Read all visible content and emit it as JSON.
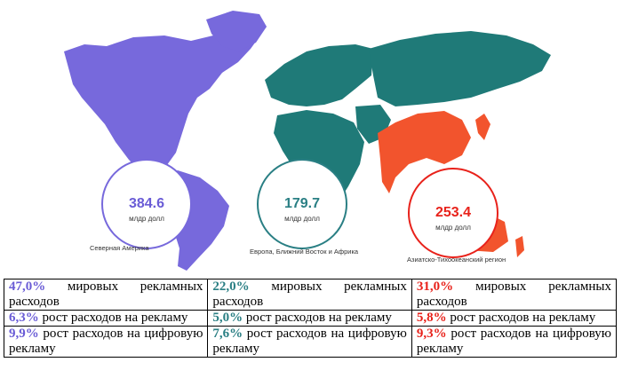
{
  "regions": [
    {
      "value": "384.6",
      "unit": "млдр долл",
      "name": "Северная Америка",
      "color": "#6a5cd6"
    },
    {
      "value": "179.7",
      "unit": "млдр долл",
      "name": "Европа, Ближний Восток и Африка",
      "color": "#2a7f84"
    },
    {
      "value": "253.4",
      "unit": "млдр долл",
      "name": "Азиатско-Тихоокеанский регион",
      "color": "#e8221b"
    }
  ],
  "land_colors": {
    "americas": "#7769dc",
    "emea": "#1f7a78",
    "apac": "#f2542d"
  },
  "table": {
    "row1": [
      {
        "pct": "47,0%",
        "text": " мировых рекламных расходов"
      },
      {
        "pct": "22,0%",
        "text": " мировых рекламных расходов"
      },
      {
        "pct": "31,0%",
        "text": " мировых рекламных расходов"
      }
    ],
    "row2": [
      {
        "pct": "6,3%",
        "text": " рост расходов на рекламу"
      },
      {
        "pct": "5,0%",
        "text": " рост расходов на рекламу"
      },
      {
        "pct": "5,8%",
        "text": " рост расходов на рекламу"
      }
    ],
    "row3": [
      {
        "pct": "9,9%",
        "text": " рост расходов на цифровую рекламу"
      },
      {
        "pct": "7,6%",
        "text": " рост расходов на цифровую рекламу"
      },
      {
        "pct": "9,3%",
        "text": " рост расходов на цифровую рекламу"
      }
    ]
  }
}
